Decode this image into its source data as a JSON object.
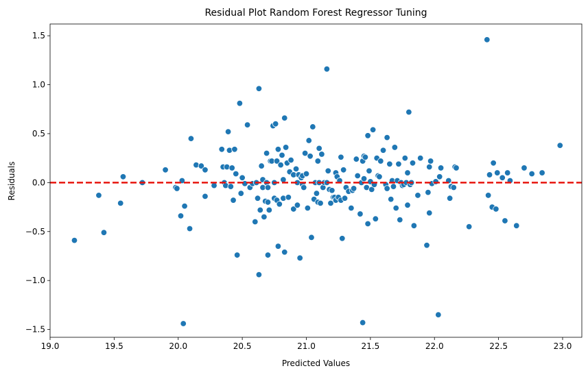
{
  "chart_data": {
    "type": "scatter",
    "title": "Residual Plot Random Forest Regressor Tuning",
    "xlabel": "Predicted Values",
    "ylabel": "Residuals",
    "xlim": [
      19.0,
      23.15
    ],
    "ylim": [
      -1.58,
      1.62
    ],
    "grid": false,
    "xticks": [
      {
        "value": 19.0,
        "label": "19.0"
      },
      {
        "value": 19.5,
        "label": "19.5"
      },
      {
        "value": 20.0,
        "label": "20.0"
      },
      {
        "value": 20.5,
        "label": "20.5"
      },
      {
        "value": 21.0,
        "label": "21.0"
      },
      {
        "value": 21.5,
        "label": "21.5"
      },
      {
        "value": 22.0,
        "label": "22.0"
      },
      {
        "value": 22.5,
        "label": "22.5"
      },
      {
        "value": 23.0,
        "label": "23.0"
      }
    ],
    "yticks": [
      {
        "value": -1.5,
        "label": "−1.5"
      },
      {
        "value": -1.0,
        "label": "−1.0"
      },
      {
        "value": -0.5,
        "label": "−0.5"
      },
      {
        "value": 0.0,
        "label": "0.0"
      },
      {
        "value": 0.5,
        "label": "0.5"
      },
      {
        "value": 1.0,
        "label": "1.0"
      },
      {
        "value": 1.5,
        "label": "1.5"
      }
    ],
    "reference_line": {
      "y": 0.0,
      "style": "dashed",
      "color": "#e8150e"
    },
    "point_color": "#1f77b4",
    "points": [
      [
        19.19,
        -0.59
      ],
      [
        19.38,
        -0.13
      ],
      [
        19.42,
        -0.51
      ],
      [
        19.55,
        -0.21
      ],
      [
        19.57,
        0.06
      ],
      [
        19.72,
        0.0
      ],
      [
        19.9,
        0.13
      ],
      [
        19.98,
        -0.05
      ],
      [
        19.99,
        -0.06
      ],
      [
        20.02,
        -0.34
      ],
      [
        20.03,
        0.02
      ],
      [
        20.04,
        -1.44
      ],
      [
        20.05,
        -0.24
      ],
      [
        20.09,
        -0.47
      ],
      [
        20.1,
        0.45
      ],
      [
        20.14,
        0.18
      ],
      [
        20.18,
        0.17
      ],
      [
        20.21,
        -0.14
      ],
      [
        20.21,
        0.13
      ],
      [
        20.28,
        -0.03
      ],
      [
        20.34,
        0.34
      ],
      [
        20.35,
        0.16
      ],
      [
        20.36,
        0.0
      ],
      [
        20.37,
        -0.03
      ],
      [
        20.38,
        0.16
      ],
      [
        20.39,
        0.52
      ],
      [
        20.4,
        0.33
      ],
      [
        20.41,
        -0.04
      ],
      [
        20.42,
        0.15
      ],
      [
        20.43,
        -0.18
      ],
      [
        20.44,
        0.34
      ],
      [
        20.45,
        0.09
      ],
      [
        20.46,
        -0.74
      ],
      [
        20.48,
        0.81
      ],
      [
        20.49,
        -0.11
      ],
      [
        20.5,
        0.05
      ],
      [
        20.52,
        -0.01
      ],
      [
        20.54,
        0.59
      ],
      [
        20.56,
        -0.05
      ],
      [
        20.58,
        -0.01
      ],
      [
        20.6,
        -0.4
      ],
      [
        20.61,
        0.0
      ],
      [
        20.62,
        -0.16
      ],
      [
        20.63,
        -0.94
      ],
      [
        20.63,
        0.96
      ],
      [
        20.64,
        -0.28
      ],
      [
        20.65,
        0.17
      ],
      [
        20.66,
        -0.05
      ],
      [
        20.66,
        0.03
      ],
      [
        20.67,
        -0.35
      ],
      [
        20.68,
        -0.19
      ],
      [
        20.69,
        0.0
      ],
      [
        20.69,
        0.3
      ],
      [
        20.7,
        -0.05
      ],
      [
        20.7,
        -0.74
      ],
      [
        20.7,
        -0.2
      ],
      [
        20.71,
        -0.28
      ],
      [
        20.72,
        0.22
      ],
      [
        20.73,
        0.22
      ],
      [
        20.74,
        0.58
      ],
      [
        20.75,
        0.0
      ],
      [
        20.75,
        -0.16
      ],
      [
        20.76,
        0.6
      ],
      [
        20.77,
        0.22
      ],
      [
        20.77,
        -0.18
      ],
      [
        20.78,
        -0.65
      ],
      [
        20.78,
        0.34
      ],
      [
        20.79,
        -0.22
      ],
      [
        20.8,
        0.18
      ],
      [
        20.81,
        0.28
      ],
      [
        20.82,
        0.03
      ],
      [
        20.82,
        -0.16
      ],
      [
        20.83,
        0.66
      ],
      [
        20.83,
        -0.71
      ],
      [
        20.84,
        0.36
      ],
      [
        20.85,
        0.2
      ],
      [
        20.86,
        -0.15
      ],
      [
        20.87,
        0.11
      ],
      [
        20.88,
        0.23
      ],
      [
        20.9,
        -0.27
      ],
      [
        20.9,
        0.08
      ],
      [
        20.92,
        0.14
      ],
      [
        20.93,
        0.0
      ],
      [
        20.93,
        -0.23
      ],
      [
        20.94,
        0.08
      ],
      [
        20.95,
        -0.77
      ],
      [
        20.96,
        0.05
      ],
      [
        20.97,
        0.07
      ],
      [
        20.97,
        -0.02
      ],
      [
        20.98,
        -0.05
      ],
      [
        20.99,
        0.3
      ],
      [
        21.0,
        0.09
      ],
      [
        21.01,
        -0.26
      ],
      [
        21.02,
        0.43
      ],
      [
        21.03,
        0.27
      ],
      [
        21.04,
        -0.56
      ],
      [
        21.05,
        0.57
      ],
      [
        21.06,
        -0.17
      ],
      [
        21.07,
        0.0
      ],
      [
        21.08,
        -0.11
      ],
      [
        21.09,
        -0.2
      ],
      [
        21.09,
        0.22
      ],
      [
        21.1,
        0.35
      ],
      [
        21.1,
        0.0
      ],
      [
        21.11,
        -0.21
      ],
      [
        21.12,
        0.29
      ],
      [
        21.13,
        -0.05
      ],
      [
        21.14,
        0.0
      ],
      [
        21.16,
        1.16
      ],
      [
        21.16,
        0.0
      ],
      [
        21.17,
        0.12
      ],
      [
        21.18,
        -0.07
      ],
      [
        21.19,
        -0.21
      ],
      [
        21.2,
        -0.08
      ],
      [
        21.21,
        -0.15
      ],
      [
        21.22,
        -0.15
      ],
      [
        21.23,
        -0.18
      ],
      [
        21.23,
        0.1
      ],
      [
        21.24,
        0.06
      ],
      [
        21.25,
        -0.15
      ],
      [
        21.26,
        0.02
      ],
      [
        21.27,
        -0.18
      ],
      [
        21.27,
        0.26
      ],
      [
        21.28,
        -0.57
      ],
      [
        21.29,
        0.13
      ],
      [
        21.3,
        -0.16
      ],
      [
        21.31,
        -0.05
      ],
      [
        21.33,
        -0.09
      ],
      [
        21.35,
        -0.26
      ],
      [
        21.36,
        -0.08
      ],
      [
        21.37,
        -0.06
      ],
      [
        21.39,
        0.24
      ],
      [
        21.4,
        0.07
      ],
      [
        21.42,
        -0.32
      ],
      [
        21.43,
        0.0
      ],
      [
        21.44,
        0.22
      ],
      [
        21.44,
        -1.43
      ],
      [
        21.45,
        0.04
      ],
      [
        21.45,
        0.27
      ],
      [
        21.46,
        0.26
      ],
      [
        21.47,
        -0.05
      ],
      [
        21.48,
        0.48
      ],
      [
        21.48,
        -0.42
      ],
      [
        21.49,
        0.12
      ],
      [
        21.5,
        0.01
      ],
      [
        21.51,
        -0.07
      ],
      [
        21.52,
        0.54
      ],
      [
        21.53,
        -0.02
      ],
      [
        21.54,
        -0.37
      ],
      [
        21.55,
        0.25
      ],
      [
        21.56,
        0.07
      ],
      [
        21.57,
        0.06
      ],
      [
        21.58,
        0.22
      ],
      [
        21.6,
        0.33
      ],
      [
        21.62,
        -0.02
      ],
      [
        21.63,
        0.46
      ],
      [
        21.63,
        -0.06
      ],
      [
        21.65,
        0.19
      ],
      [
        21.66,
        -0.17
      ],
      [
        21.67,
        0.02
      ],
      [
        21.68,
        -0.04
      ],
      [
        21.69,
        0.36
      ],
      [
        21.7,
        -0.26
      ],
      [
        21.71,
        0.02
      ],
      [
        21.72,
        0.19
      ],
      [
        21.73,
        -0.38
      ],
      [
        21.74,
        0.0
      ],
      [
        21.75,
        -0.03
      ],
      [
        21.76,
        -0.02
      ],
      [
        21.77,
        0.25
      ],
      [
        21.78,
        0.0
      ],
      [
        21.79,
        -0.23
      ],
      [
        21.79,
        0.1
      ],
      [
        21.8,
        0.72
      ],
      [
        21.81,
        -0.02
      ],
      [
        21.82,
        0.0
      ],
      [
        21.83,
        0.2
      ],
      [
        21.84,
        -0.44
      ],
      [
        21.87,
        -0.13
      ],
      [
        21.89,
        0.25
      ],
      [
        21.94,
        -0.64
      ],
      [
        21.95,
        -0.1
      ],
      [
        21.96,
        0.16
      ],
      [
        21.96,
        -0.31
      ],
      [
        21.97,
        0.22
      ],
      [
        21.98,
        -0.01
      ],
      [
        22.01,
        0.01
      ],
      [
        22.03,
        -1.35
      ],
      [
        22.04,
        0.06
      ],
      [
        22.05,
        0.15
      ],
      [
        22.11,
        0.02
      ],
      [
        22.12,
        -0.16
      ],
      [
        22.13,
        -0.04
      ],
      [
        22.15,
        -0.05
      ],
      [
        22.16,
        0.16
      ],
      [
        22.17,
        0.15
      ],
      [
        22.27,
        -0.45
      ],
      [
        22.41,
        1.46
      ],
      [
        22.42,
        -0.13
      ],
      [
        22.43,
        0.08
      ],
      [
        22.45,
        -0.25
      ],
      [
        22.46,
        0.2
      ],
      [
        22.48,
        -0.27
      ],
      [
        22.49,
        0.1
      ],
      [
        22.53,
        0.05
      ],
      [
        22.55,
        -0.39
      ],
      [
        22.57,
        0.1
      ],
      [
        22.59,
        0.02
      ],
      [
        22.64,
        -0.44
      ],
      [
        22.7,
        0.15
      ],
      [
        22.76,
        0.09
      ],
      [
        22.84,
        0.1
      ],
      [
        22.98,
        0.38
      ]
    ]
  }
}
